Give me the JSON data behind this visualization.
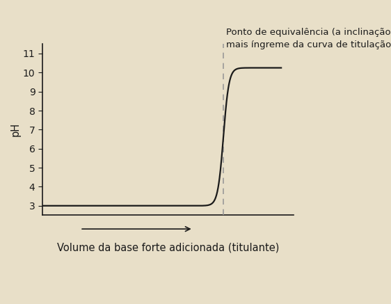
{
  "annotation_line1": "Ponto de equivalência (a inclinação",
  "annotation_line2": "mais íngreme da curva de titulação)",
  "xlabel": "Volume da base forte adicionada (titulante)",
  "ylabel": "pH",
  "yticks": [
    3,
    4,
    5,
    6,
    7,
    8,
    9,
    10,
    11
  ],
  "ylim": [
    2.5,
    11.5
  ],
  "xlim": [
    0,
    10
  ],
  "equivalence_x": 7.2,
  "curve_steepness": 9.0,
  "pH_min": 3.0,
  "pH_max": 10.25,
  "curve_color": "#1a1a1a",
  "background_color": "#e8dfc8",
  "axis_color": "#1a1a1a",
  "dashed_color": "#999999",
  "annotation_fontsize": 9.5,
  "label_fontsize": 10.5,
  "tick_fontsize": 10
}
